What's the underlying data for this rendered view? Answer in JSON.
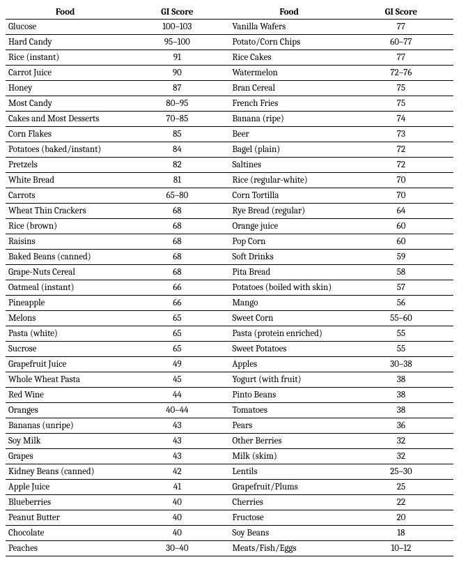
{
  "headers": {
    "food": "Food",
    "score": "GI Score"
  },
  "left": [
    {
      "food": "Glucose",
      "score": "100–103"
    },
    {
      "food": "Hard Candy",
      "score": "95–100"
    },
    {
      "food": "Rice (instant)",
      "score": "91"
    },
    {
      "food": "Carrot Juice",
      "score": "90"
    },
    {
      "food": "Honey",
      "score": "87"
    },
    {
      "food": "Most Candy",
      "score": "80–95"
    },
    {
      "food": "Cakes and Most Desserts",
      "score": "70–85"
    },
    {
      "food": "Corn Flakes",
      "score": "85"
    },
    {
      "food": "Potatoes (baked/instant)",
      "score": "84"
    },
    {
      "food": "Pretzels",
      "score": "82"
    },
    {
      "food": "White Bread",
      "score": "81"
    },
    {
      "food": "Carrots",
      "score": "65–80"
    },
    {
      "food": "Wheat Thin Crackers",
      "score": "68"
    },
    {
      "food": "Rice (brown)",
      "score": "68"
    },
    {
      "food": "Raisins",
      "score": "68"
    },
    {
      "food": "Baked Beans (canned)",
      "score": "68"
    },
    {
      "food": "Grape-Nuts Cereal",
      "score": "68"
    },
    {
      "food": "Oatmeal (instant)",
      "score": "66"
    },
    {
      "food": "Pineapple",
      "score": "66"
    },
    {
      "food": "Melons",
      "score": "65"
    },
    {
      "food": "Pasta (white)",
      "score": "65"
    },
    {
      "food": "Sucrose",
      "score": "65"
    },
    {
      "food": "Grapefruit Juice",
      "score": "49"
    },
    {
      "food": "Whole Wheat Pasta",
      "score": "45"
    },
    {
      "food": "Red Wine",
      "score": "44"
    },
    {
      "food": "Oranges",
      "score": "40–44"
    },
    {
      "food": "Bananas (unripe)",
      "score": "43"
    },
    {
      "food": "Soy Milk",
      "score": "43"
    },
    {
      "food": "Grapes",
      "score": "43"
    },
    {
      "food": "Kidney Beans (canned)",
      "score": "42"
    },
    {
      "food": "Apple Juice",
      "score": "41"
    },
    {
      "food": "Blueberries",
      "score": "40"
    },
    {
      "food": "Peanut Butter",
      "score": "40"
    },
    {
      "food": "Chocolate",
      "score": "40"
    },
    {
      "food": "Peaches",
      "score": "30–40"
    }
  ],
  "right": [
    {
      "food": "Vanilla Wafers",
      "score": "77"
    },
    {
      "food": "Potato/Corn Chips",
      "score": "60–77"
    },
    {
      "food": "Rice Cakes",
      "score": "77"
    },
    {
      "food": "Watermelon",
      "score": "72–76"
    },
    {
      "food": "Bran Cereal",
      "score": "75"
    },
    {
      "food": "French Fries",
      "score": "75"
    },
    {
      "food": "Banana (ripe)",
      "score": "74"
    },
    {
      "food": "Beer",
      "score": "73"
    },
    {
      "food": "Bagel (plain)",
      "score": "72"
    },
    {
      "food": "Saltines",
      "score": "72"
    },
    {
      "food": "Rice (regular-white)",
      "score": "70"
    },
    {
      "food": "Corn Tortilla",
      "score": "70"
    },
    {
      "food": "Rye Bread (regular)",
      "score": "64"
    },
    {
      "food": "Orange juice",
      "score": "60"
    },
    {
      "food": "Pop Corn",
      "score": "60"
    },
    {
      "food": "Soft Drinks",
      "score": "59"
    },
    {
      "food": "Pita Bread",
      "score": "58"
    },
    {
      "food": "Potatoes (boiled with skin)",
      "score": "57"
    },
    {
      "food": "Mango",
      "score": "56"
    },
    {
      "food": "Sweet Corn",
      "score": "55–60"
    },
    {
      "food": "Pasta (protein enriched)",
      "score": "55"
    },
    {
      "food": "Sweet Potatoes",
      "score": "55"
    },
    {
      "food": "Apples",
      "score": "30–38"
    },
    {
      "food": "Yogurt (with fruit)",
      "score": "38"
    },
    {
      "food": "Pinto Beans",
      "score": "38"
    },
    {
      "food": "Tomatoes",
      "score": "38"
    },
    {
      "food": "Pears",
      "score": "36"
    },
    {
      "food": "Other Berries",
      "score": "32"
    },
    {
      "food": "Milk (skim)",
      "score": "32"
    },
    {
      "food": "Lentils",
      "score": "25–30"
    },
    {
      "food": "Grapefruit/Plums",
      "score": "25"
    },
    {
      "food": "Cherries",
      "score": "22"
    },
    {
      "food": "Fructose",
      "score": "20"
    },
    {
      "food": "Soy Beans",
      "score": "18"
    },
    {
      "food": "Meats/Fish/Eggs",
      "score": "10–12"
    }
  ]
}
